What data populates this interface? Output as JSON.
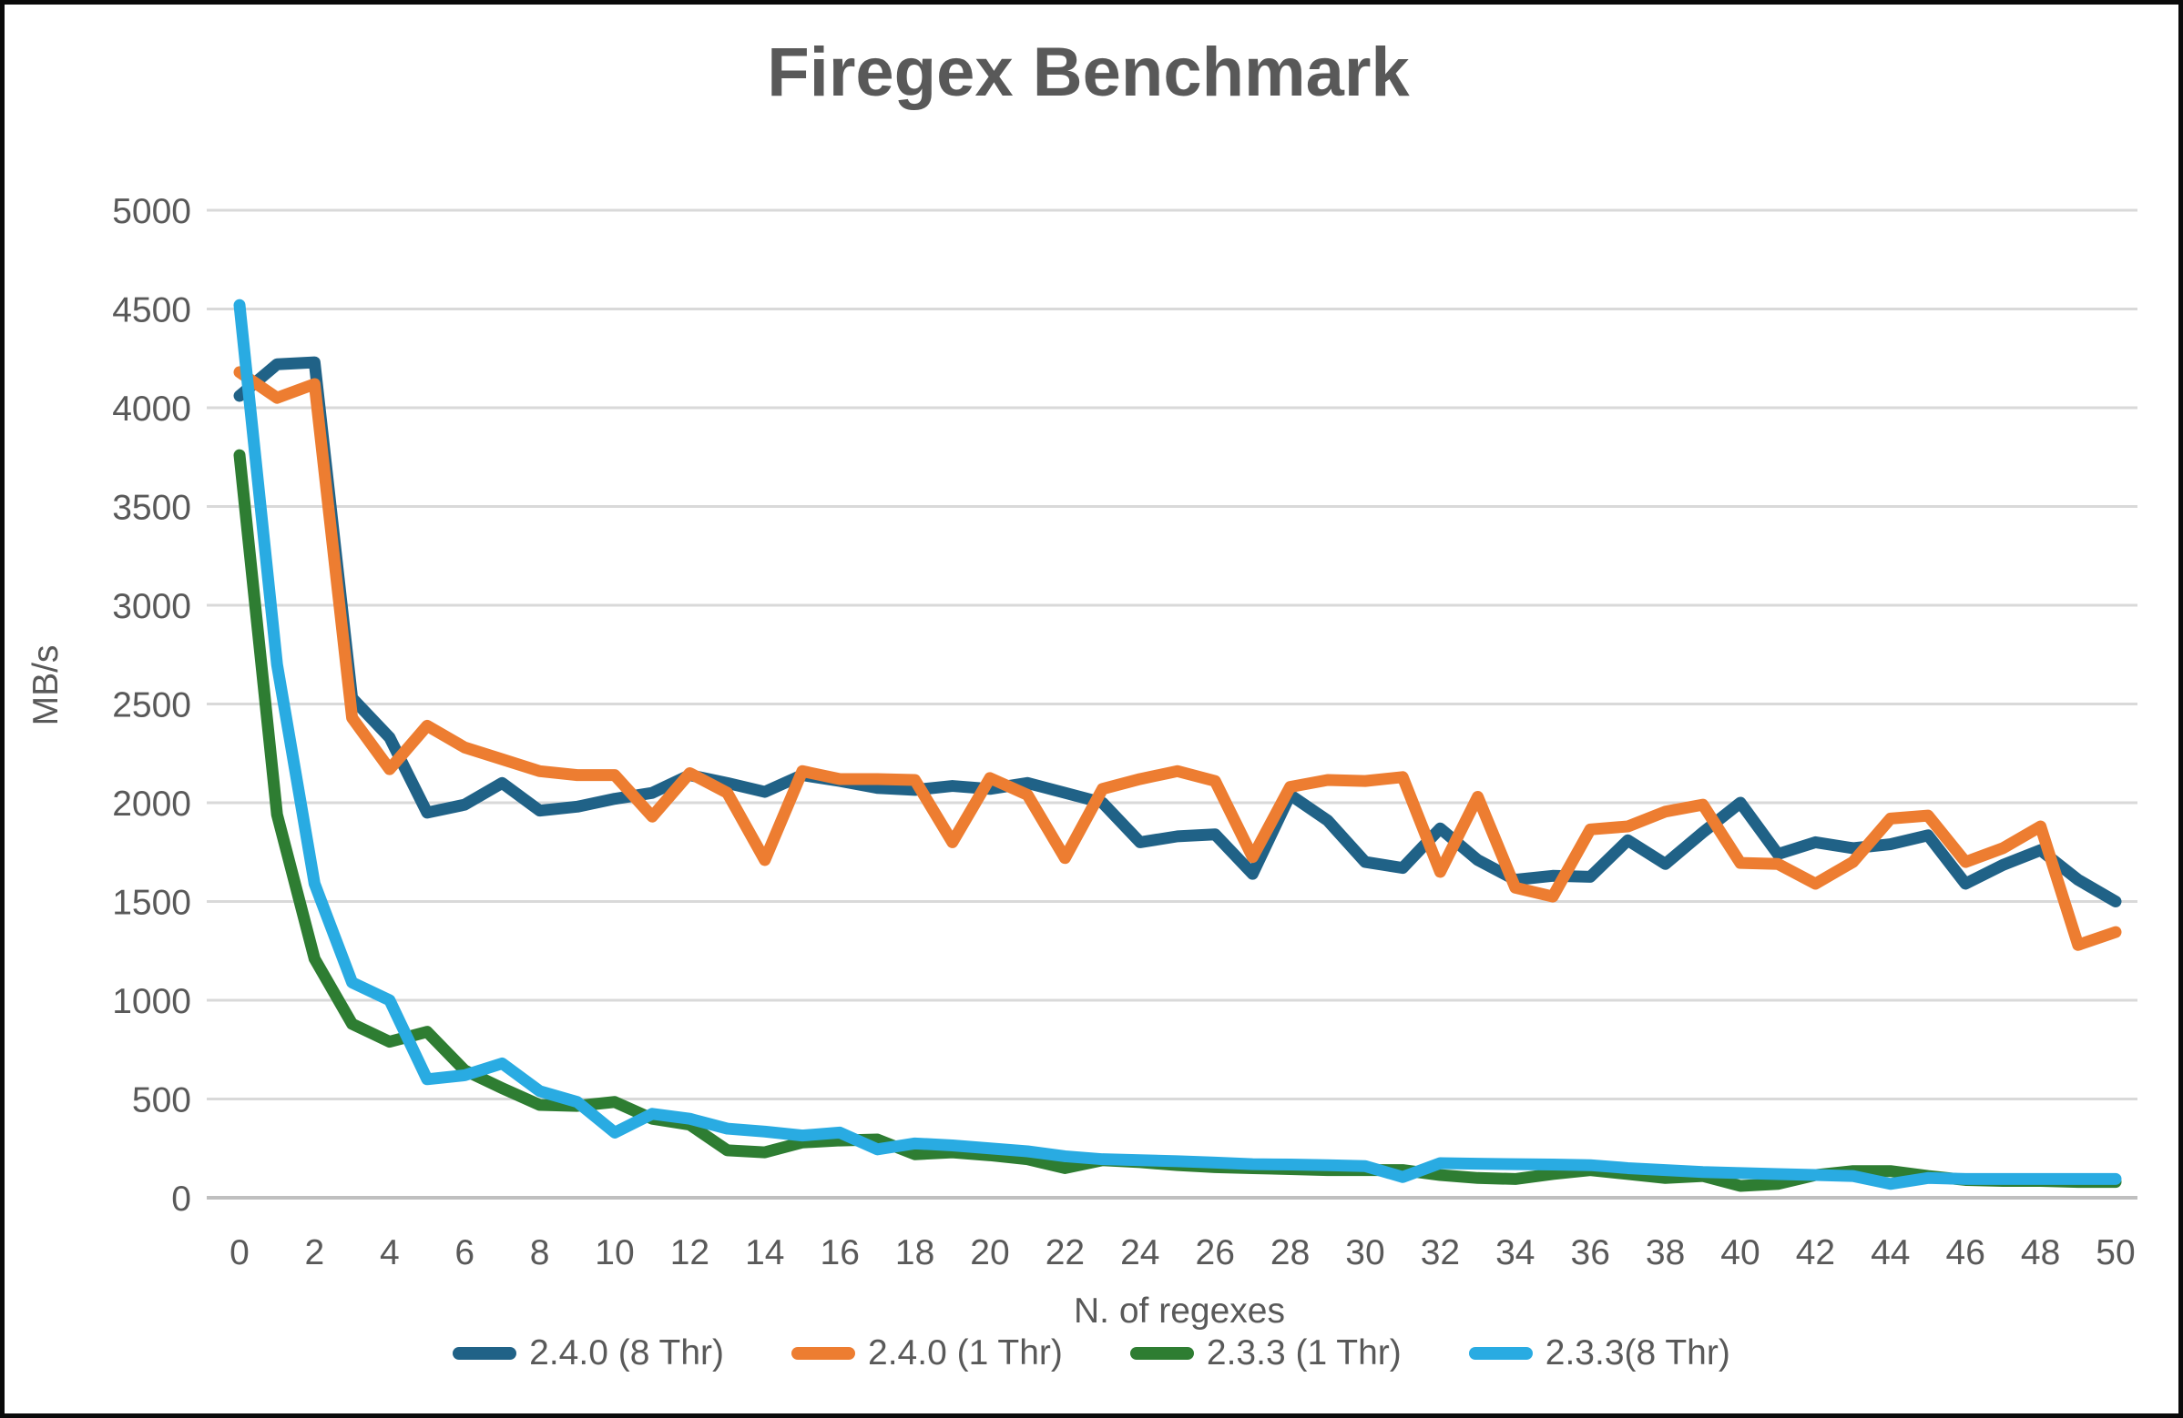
{
  "title": "Firegex Benchmark",
  "y_axis": {
    "label": "MB/s",
    "ticks": [
      0,
      500,
      1000,
      1500,
      2000,
      2500,
      3000,
      3500,
      4000,
      4500,
      5000
    ]
  },
  "x_axis": {
    "label": "N. of regexes",
    "ticks": [
      0,
      2,
      4,
      6,
      8,
      10,
      12,
      14,
      16,
      18,
      20,
      22,
      24,
      26,
      28,
      30,
      32,
      34,
      36,
      38,
      40,
      42,
      44,
      46,
      48,
      50
    ]
  },
  "legend": [
    {
      "label": "2.4.0 (8 Thr)",
      "color": "#206287"
    },
    {
      "label": "2.4.0 (1 Thr)",
      "color": "#ED7D31"
    },
    {
      "label": "2.3.3 (1 Thr)",
      "color": "#2E7D32"
    },
    {
      "label": "2.3.3(8 Thr)",
      "color": "#29ABE2"
    }
  ],
  "colors": {
    "grid": "#D9D9D9",
    "axis_line": "#BFBFBF",
    "text": "#595959",
    "title_text": "#595959"
  },
  "chart_data": {
    "type": "line",
    "title": "Firegex Benchmark",
    "xlabel": "N. of regexes",
    "ylabel": "MB/s",
    "xlim": [
      0,
      50
    ],
    "ylim": [
      0,
      5000
    ],
    "grid": true,
    "legend_position": "bottom",
    "x": [
      0,
      1,
      2,
      3,
      4,
      5,
      6,
      7,
      8,
      9,
      10,
      11,
      12,
      13,
      14,
      15,
      16,
      17,
      18,
      19,
      20,
      21,
      22,
      23,
      24,
      25,
      26,
      27,
      28,
      29,
      30,
      31,
      32,
      33,
      34,
      35,
      36,
      37,
      38,
      39,
      40,
      41,
      42,
      43,
      44,
      45,
      46,
      47,
      48,
      49,
      50
    ],
    "series": [
      {
        "name": "2.4.0 (8 Thr)",
        "color": "#206287",
        "values": [
          4060,
          4220,
          4230,
          2530,
          2330,
          1950,
          1990,
          2100,
          1960,
          1980,
          2020,
          2050,
          2140,
          2100,
          2055,
          2140,
          2110,
          2075,
          2065,
          2085,
          2070,
          2100,
          2050,
          2000,
          1800,
          1830,
          1840,
          1640,
          2040,
          1910,
          1700,
          1670,
          1870,
          1710,
          1610,
          1630,
          1625,
          1810,
          1690,
          1850,
          2000,
          1740,
          1800,
          1770,
          1790,
          1835,
          1590,
          1685,
          1760,
          1610,
          1500
        ]
      },
      {
        "name": "2.4.0 (1 Thr)",
        "color": "#ED7D31",
        "values": [
          4180,
          4050,
          4120,
          2430,
          2170,
          2390,
          2280,
          2220,
          2160,
          2140,
          2140,
          1930,
          2150,
          2050,
          1710,
          2160,
          2120,
          2120,
          2115,
          1800,
          2125,
          2040,
          1720,
          2070,
          2120,
          2160,
          2110,
          1725,
          2080,
          2115,
          2110,
          2130,
          1650,
          2030,
          1570,
          1525,
          1865,
          1880,
          1955,
          1990,
          1695,
          1690,
          1590,
          1700,
          1920,
          1935,
          1700,
          1770,
          1880,
          1280,
          1345
        ]
      },
      {
        "name": "2.3.3 (1 Thr)",
        "color": "#2E7D32",
        "values": [
          3760,
          1940,
          1210,
          880,
          790,
          840,
          645,
          555,
          470,
          465,
          485,
          400,
          370,
          240,
          230,
          280,
          290,
          295,
          220,
          230,
          215,
          195,
          150,
          190,
          180,
          165,
          155,
          150,
          145,
          140,
          140,
          140,
          115,
          100,
          95,
          120,
          140,
          120,
          100,
          110,
          60,
          70,
          115,
          135,
          135,
          110,
          90,
          85,
          85,
          80,
          80
        ]
      },
      {
        "name": "2.3.3(8 Thr)",
        "color": "#29ABE2",
        "values": [
          4520,
          2700,
          1590,
          1090,
          1000,
          600,
          620,
          680,
          540,
          485,
          330,
          425,
          400,
          350,
          335,
          315,
          330,
          245,
          275,
          265,
          250,
          235,
          210,
          195,
          190,
          185,
          178,
          170,
          168,
          165,
          160,
          105,
          175,
          172,
          170,
          168,
          165,
          150,
          140,
          130,
          125,
          120,
          115,
          110,
          70,
          100,
          95,
          95,
          95,
          95,
          95
        ]
      }
    ]
  }
}
